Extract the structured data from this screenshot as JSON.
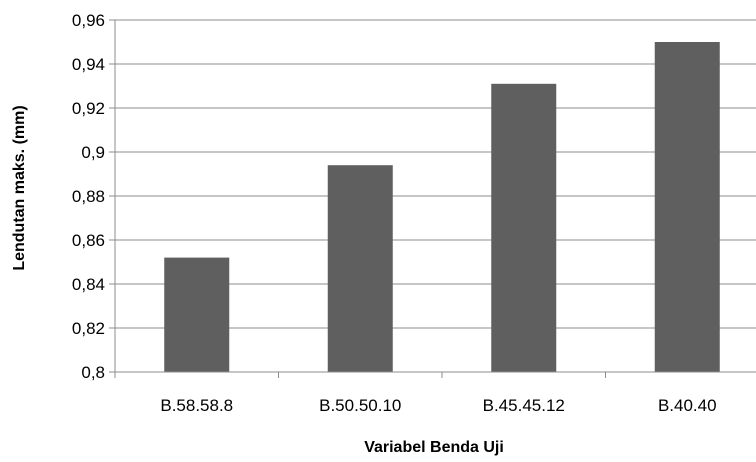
{
  "chart_data": {
    "type": "bar",
    "title": "",
    "xlabel": "Variabel Benda Uji",
    "ylabel": "Lendutan maks. (mm)",
    "categories": [
      "B.58.58.8",
      "B.50.50.10",
      "B.45.45.12",
      "B.40.40"
    ],
    "values": [
      0.852,
      0.894,
      0.931,
      0.95
    ],
    "ylim": [
      0.8,
      0.96
    ],
    "yticks": [
      0.8,
      0.82,
      0.84,
      0.86,
      0.88,
      0.9,
      0.92,
      0.94,
      0.96
    ],
    "ytick_labels": [
      "0,8",
      "0,82",
      "0,84",
      "0,86",
      "0,88",
      "0,9",
      "0,92",
      "0,94",
      "0,96"
    ],
    "grid": true,
    "legend": "none",
    "colors": {
      "bar": "#5f5f5f",
      "grid": "#8c8c8c",
      "axis": "#8c8c8c"
    }
  }
}
